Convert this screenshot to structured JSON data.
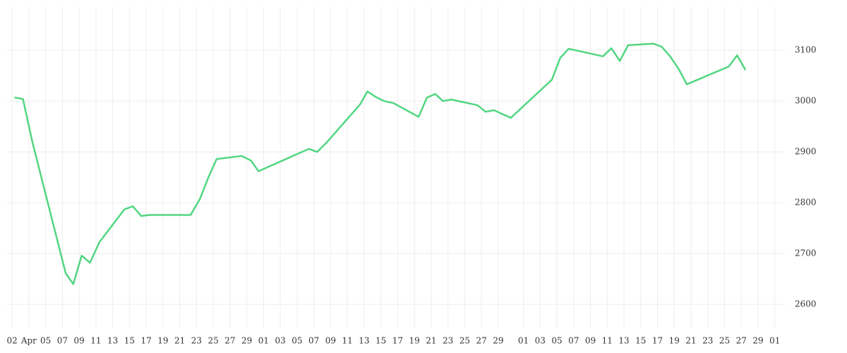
{
  "chart_data": {
    "type": "line",
    "x": [
      0.3,
      1.3,
      2.4,
      6.4,
      7.3,
      8.3,
      9.3,
      10.4,
      13.4,
      14.4,
      15.4,
      16.4,
      21.3,
      22.4,
      23.4,
      24.4,
      27.4,
      28.5,
      29.4,
      35.4,
      36.4,
      37.5,
      41.5,
      42.4,
      43.4,
      44.4,
      45.5,
      48.5,
      49.5,
      50.5,
      51.4,
      52.4,
      55.5,
      56.5,
      57.5,
      59.5,
      64.4,
      65.4,
      66.4,
      70.5,
      71.5,
      72.5,
      73.5,
      76.5,
      77.5,
      78.5,
      79.5,
      80.5,
      85.5,
      86.5,
      87.5
    ],
    "series": [
      {
        "color": "#52d681",
        "values": [
          3007,
          3004,
          2921,
          2661,
          2640,
          2696,
          2682,
          2722,
          2787,
          2793,
          2774,
          2776,
          2776,
          2807,
          2849,
          2886,
          2892,
          2883,
          2862,
          2906,
          2900,
          2918,
          2993,
          3019,
          3008,
          3000,
          2996,
          2969,
          3007,
          3014,
          3000,
          3003,
          2992,
          2979,
          2982,
          2967,
          3042,
          3085,
          3103,
          3088,
          3104,
          3079,
          3110,
          3113,
          3107,
          3088,
          3064,
          3033,
          3068,
          3090,
          3061
        ]
      }
    ],
    "xlim": [
      -0.6,
      92.2
    ],
    "xticks": [
      {
        "value": 0,
        "label": "02"
      },
      {
        "value": 2,
        "label": "Apr"
      },
      {
        "value": 4,
        "label": "05"
      },
      {
        "value": 6,
        "label": "07"
      },
      {
        "value": 8,
        "label": "09"
      },
      {
        "value": 10,
        "label": "11"
      },
      {
        "value": 12,
        "label": "13"
      },
      {
        "value": 14,
        "label": "15"
      },
      {
        "value": 16,
        "label": "17"
      },
      {
        "value": 18,
        "label": "19"
      },
      {
        "value": 20,
        "label": "21"
      },
      {
        "value": 22,
        "label": "23"
      },
      {
        "value": 24,
        "label": "25"
      },
      {
        "value": 26,
        "label": "27"
      },
      {
        "value": 28,
        "label": "29"
      },
      {
        "value": 30,
        "label": "01"
      },
      {
        "value": 32,
        "label": "03"
      },
      {
        "value": 34,
        "label": "05"
      },
      {
        "value": 36,
        "label": "07"
      },
      {
        "value": 38,
        "label": "09"
      },
      {
        "value": 40,
        "label": "11"
      },
      {
        "value": 42,
        "label": "13"
      },
      {
        "value": 44,
        "label": "15"
      },
      {
        "value": 46,
        "label": "17"
      },
      {
        "value": 48,
        "label": "19"
      },
      {
        "value": 50,
        "label": "21"
      },
      {
        "value": 52,
        "label": "23"
      },
      {
        "value": 54,
        "label": "25"
      },
      {
        "value": 56,
        "label": "27"
      },
      {
        "value": 58,
        "label": "29"
      },
      {
        "value": 61,
        "label": "01"
      },
      {
        "value": 63,
        "label": "03"
      },
      {
        "value": 65,
        "label": "05"
      },
      {
        "value": 67,
        "label": "07"
      },
      {
        "value": 69,
        "label": "09"
      },
      {
        "value": 71,
        "label": "11"
      },
      {
        "value": 73,
        "label": "13"
      },
      {
        "value": 75,
        "label": "15"
      },
      {
        "value": 77,
        "label": "17"
      },
      {
        "value": 79,
        "label": "19"
      },
      {
        "value": 81,
        "label": "21"
      },
      {
        "value": 83,
        "label": "23"
      },
      {
        "value": 85,
        "label": "25"
      },
      {
        "value": 87,
        "label": "27"
      },
      {
        "value": 89,
        "label": "29"
      },
      {
        "value": 91,
        "label": "01"
      }
    ],
    "ylim": [
      2553,
      3185
    ],
    "yticks": [
      2600,
      2700,
      2800,
      2900,
      3000,
      3100
    ],
    "grid": true
  }
}
